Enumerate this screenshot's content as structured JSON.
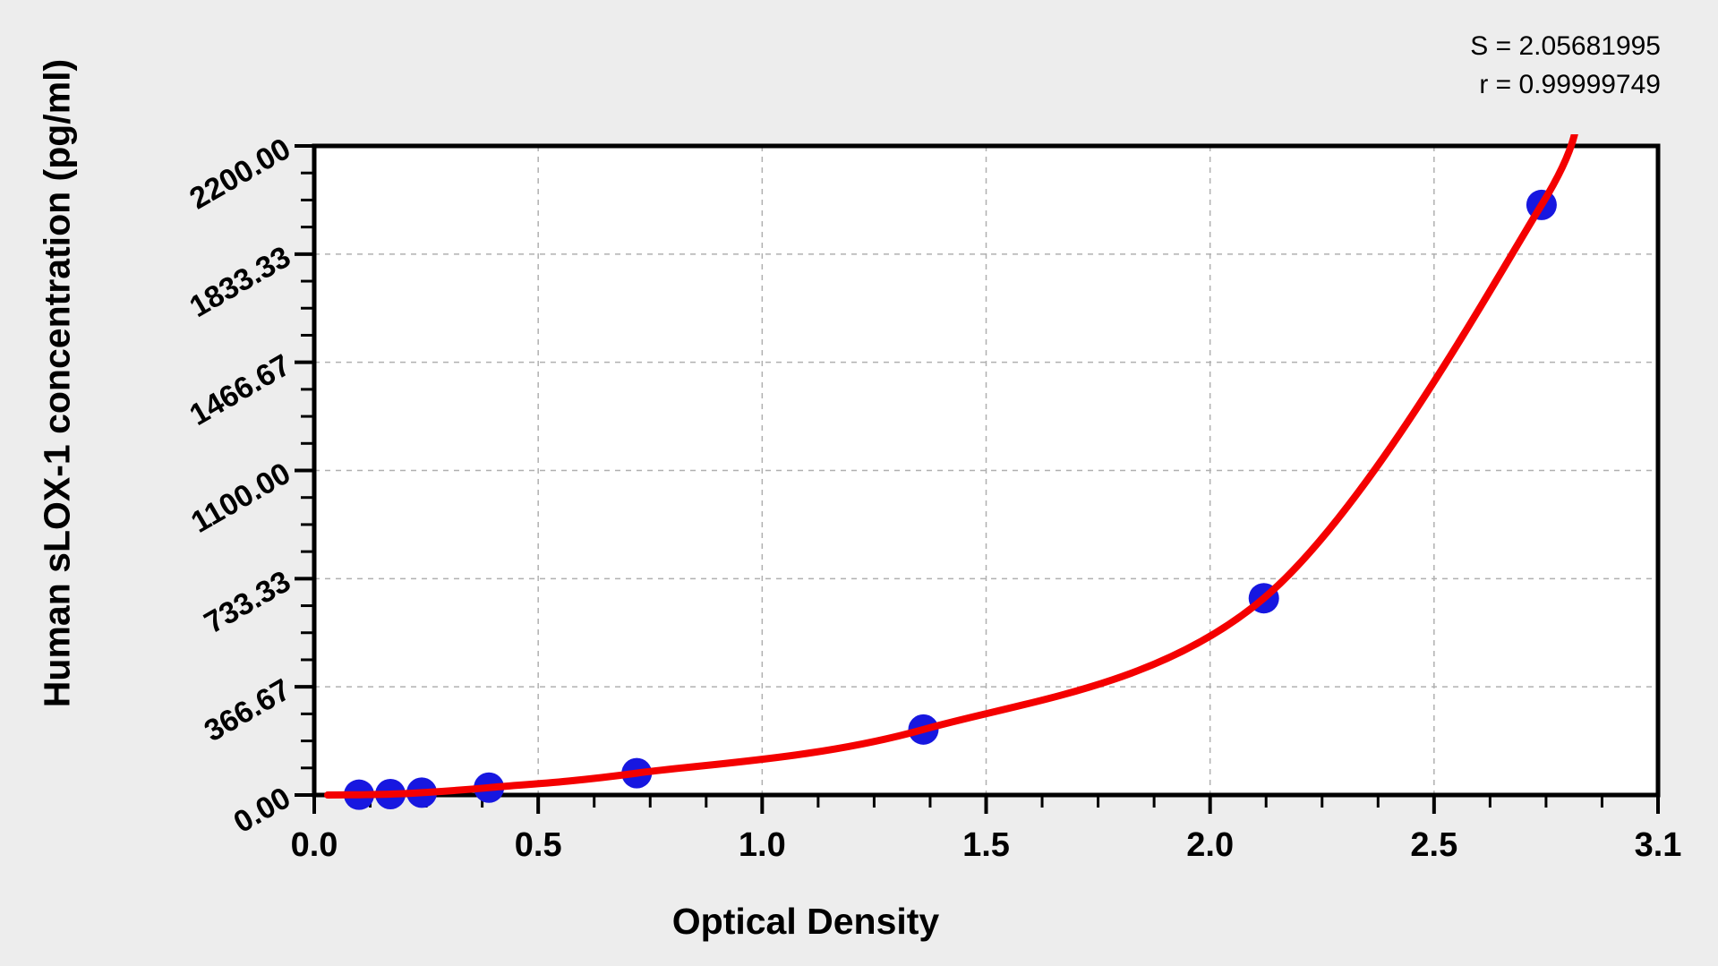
{
  "colors": {
    "background": "#ededed",
    "plot_background": "#ffffff",
    "frame": "#000000",
    "grid": "#b0b0b0",
    "curve": "#f40000",
    "points": "#1717e0"
  },
  "chart_data": {
    "type": "scatter",
    "title": "",
    "xlabel": "Optical Density",
    "ylabel": "Human sLOX-1 concentration (pg/ml)",
    "annotations": {
      "s": "S = 2.05681995",
      "r": "r = 0.99999749"
    },
    "legend": "none",
    "grid": {
      "style": "dashed",
      "on_major_ticks": true
    },
    "x_axis": {
      "min": 0,
      "max": 3.0,
      "major_tick_values": [
        0,
        0.5,
        1.0,
        1.5,
        2.0,
        2.5
      ],
      "major_tick_labels": [
        "0.0",
        "0.5",
        "1.0",
        "1.5",
        "2.0",
        "2.5"
      ],
      "end_tick_label": "3.1",
      "minor_divisions_per_major": 4
    },
    "y_axis": {
      "min": 0,
      "max": 2200,
      "major_tick_values": [
        0,
        366.67,
        733.33,
        1100,
        1466.67,
        1833.33,
        2200
      ],
      "major_tick_labels": [
        "0.00",
        "366.67",
        "733.33",
        "1100.00",
        "1466.67",
        "1833.33",
        "2200.00"
      ],
      "minor_divisions_per_major": 4
    },
    "series": [
      {
        "name": "standards",
        "type": "scatter",
        "color": "#1717e0",
        "points": [
          {
            "od": 0.1,
            "conc": 1
          },
          {
            "od": 0.17,
            "conc": 3
          },
          {
            "od": 0.24,
            "conc": 8
          },
          {
            "od": 0.39,
            "conc": 25
          },
          {
            "od": 0.72,
            "conc": 74
          },
          {
            "od": 1.36,
            "conc": 222
          },
          {
            "od": 2.12,
            "conc": 667
          },
          {
            "od": 2.74,
            "conc": 2000
          }
        ]
      },
      {
        "name": "fitted_curve",
        "type": "line",
        "color": "#f40000",
        "passes_through": "standards",
        "extension": [
          {
            "od": 0.03,
            "conc": 0
          },
          {
            "od": 2.82,
            "conc": 2400
          }
        ]
      }
    ]
  }
}
